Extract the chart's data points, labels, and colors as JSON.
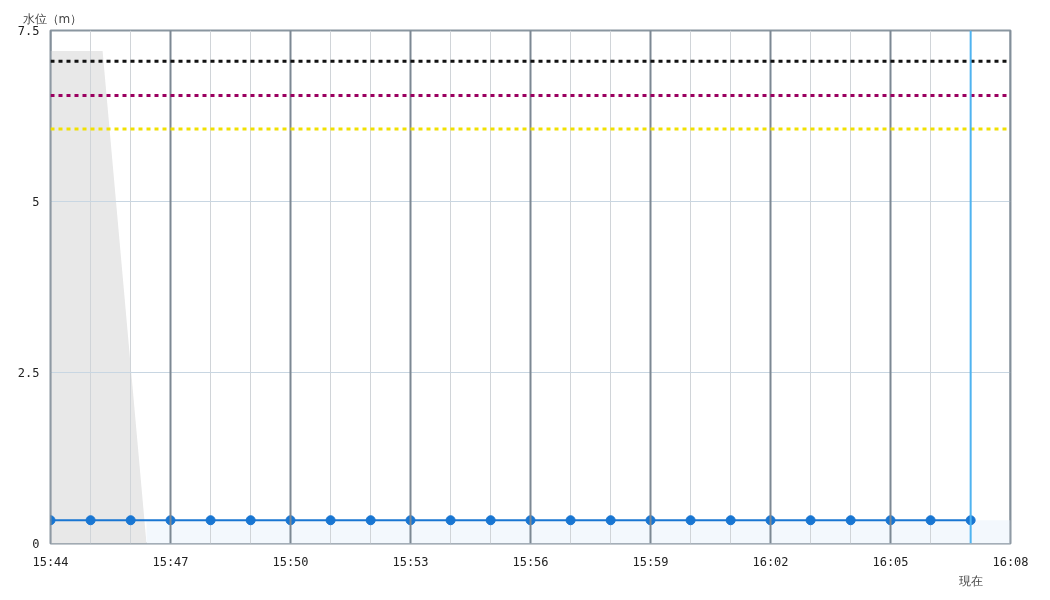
{
  "chart_data": {
    "type": "line",
    "ylabel": "水位（m）",
    "ylim": [
      0,
      7.5
    ],
    "yticks": [
      0,
      2.5,
      5,
      7.5
    ],
    "xlim": [
      15.7333,
      16.1333
    ],
    "xticks": [
      {
        "value": 15.7333,
        "label": "15:44"
      },
      {
        "value": 15.75,
        "label": null
      },
      {
        "value": 15.7667,
        "label": null
      },
      {
        "value": 15.7833,
        "label": "15:47"
      },
      {
        "value": 15.8,
        "label": null
      },
      {
        "value": 15.8167,
        "label": null
      },
      {
        "value": 15.8333,
        "label": "15:50"
      },
      {
        "value": 15.85,
        "label": null
      },
      {
        "value": 15.8667,
        "label": null
      },
      {
        "value": 15.8833,
        "label": "15:53"
      },
      {
        "value": 15.9,
        "label": null
      },
      {
        "value": 15.9167,
        "label": null
      },
      {
        "value": 15.9333,
        "label": "15:56"
      },
      {
        "value": 15.95,
        "label": null
      },
      {
        "value": 15.9667,
        "label": null
      },
      {
        "value": 15.9833,
        "label": "15:59"
      },
      {
        "value": 16.0,
        "label": null
      },
      {
        "value": 16.0167,
        "label": null
      },
      {
        "value": 16.0333,
        "label": "16:02"
      },
      {
        "value": 16.05,
        "label": null
      },
      {
        "value": 16.0667,
        "label": null
      },
      {
        "value": 16.0833,
        "label": "16:05"
      },
      {
        "value": 16.1,
        "label": null
      },
      {
        "value": 16.1167,
        "label": null
      },
      {
        "value": 16.1333,
        "label": "16:08"
      }
    ],
    "grid": true,
    "line_style": "solid",
    "series": [
      {
        "type": "area",
        "color": "#e8e8e8",
        "x": [
          15.7333,
          15.755,
          15.7733
        ],
        "values": [
          7.2,
          7.2,
          0
        ]
      },
      {
        "type": "area",
        "color": "#f3f8fd",
        "x": [
          15.7733,
          16.1333
        ],
        "values": [
          0.34,
          0.34
        ]
      },
      {
        "marker": "circle",
        "color": "#1976d2",
        "x": [
          15.7333,
          15.75,
          15.7667,
          15.7833,
          15.8,
          15.8167,
          15.8333,
          15.85,
          15.8667,
          15.8833,
          15.9,
          15.9167,
          15.9333,
          15.95,
          15.9667,
          15.9833,
          16.0,
          16.0167,
          16.0333,
          16.05,
          16.0667,
          16.0833,
          16.1,
          16.1167
        ],
        "values": [
          0.34,
          0.34,
          0.34,
          0.34,
          0.34,
          0.34,
          0.34,
          0.34,
          0.34,
          0.34,
          0.34,
          0.34,
          0.34,
          0.34,
          0.34,
          0.34,
          0.34,
          0.34,
          0.34,
          0.34,
          0.34,
          0.34,
          0.34,
          0.34
        ]
      }
    ],
    "ref_lines": [
      {
        "axis": "y",
        "value": 7.05,
        "color": "#111111",
        "line_style": "dotted"
      },
      {
        "axis": "y",
        "value": 6.55,
        "color": "#9b0060",
        "line_style": "dotted"
      },
      {
        "axis": "y",
        "value": 6.06,
        "color": "#f0e000",
        "line_style": "dotted"
      },
      {
        "axis": "x",
        "value": 16.1167,
        "label": "現在",
        "color": "#4fb3f0",
        "line_style": "solid"
      }
    ]
  }
}
